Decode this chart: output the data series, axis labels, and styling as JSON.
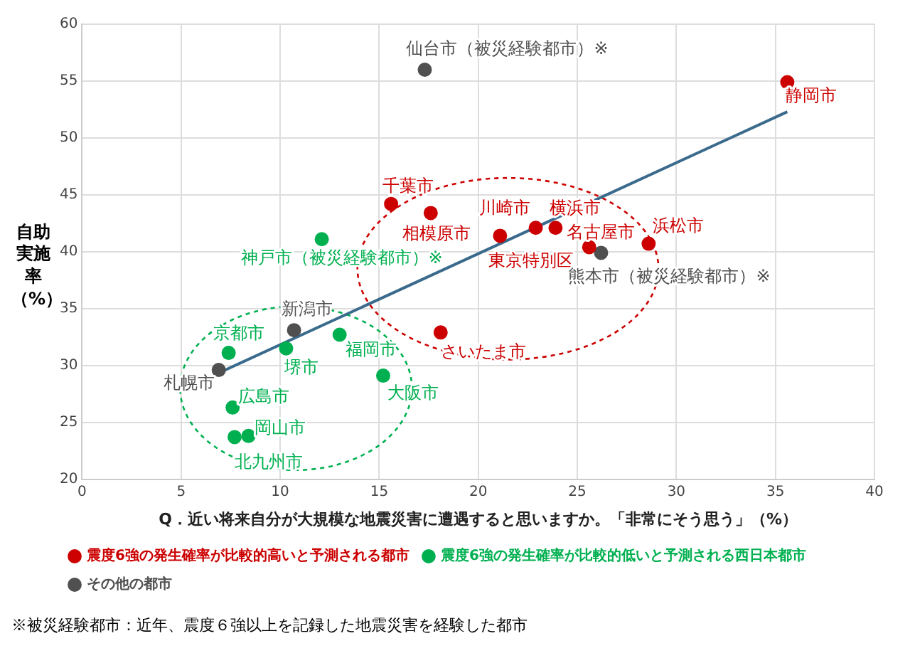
{
  "chart_data": {
    "type": "scatter",
    "xlabel": "Q．近い将来自分が大規模な地震災害に遭遇すると思いますか。「非常にそう思う」（%）",
    "ylabel": "自助実施率（%）",
    "xlim": [
      0,
      40
    ],
    "xticks": [
      0,
      5,
      10,
      15,
      20,
      25,
      30,
      35,
      40
    ],
    "ylim": [
      20,
      60
    ],
    "yticks": [
      20,
      25,
      30,
      35,
      40,
      45,
      50,
      55,
      60
    ],
    "grid": true,
    "legend": "bottom",
    "marker": "circle",
    "series": [
      {
        "name": "震度6強の発生確率が比較的高いと予測される都市",
        "color": "#cc0000",
        "x": [
          35.6,
          15.6,
          17.6,
          21.1,
          22.9,
          23.9,
          25.6,
          28.6,
          18.1
        ],
        "values": [
          54.9,
          44.2,
          43.4,
          41.4,
          42.1,
          42.1,
          40.4,
          40.7,
          32.9
        ]
      },
      {
        "name": "震度6強の発生確率が比較的低いと予測される西日本都市",
        "color": "#00b050",
        "x": [
          12.1,
          7.4,
          10.3,
          13.0,
          15.2,
          7.6,
          8.4,
          7.7
        ],
        "values": [
          41.1,
          31.1,
          31.5,
          32.7,
          29.1,
          26.3,
          23.8,
          23.7
        ]
      },
      {
        "name": "その他の都市",
        "color": "#505050",
        "x": [
          17.3,
          26.2,
          10.7,
          6.9
        ],
        "values": [
          56.0,
          39.9,
          33.1,
          29.6
        ]
      },
      {
        "type": "line",
        "marker": "none",
        "color": "#3a6a8c",
        "x": [
          7.1,
          35.6
        ],
        "values": [
          29.5,
          52.3
        ]
      }
    ],
    "annotations": [
      {
        "text": "仙台市（被災経験都市）※",
        "x": 17.3,
        "y": 56.0
      },
      {
        "text": "静岡市",
        "x": 35.6,
        "y": 54.9
      },
      {
        "text": "千葉市",
        "x": 15.6,
        "y": 44.2
      },
      {
        "text": "相模原市",
        "x": 17.6,
        "y": 43.4
      },
      {
        "text": "神戸市（被災経験都市）※",
        "x": 12.1,
        "y": 41.1
      },
      {
        "text": "東京特別区",
        "x": 21.1,
        "y": 41.4
      },
      {
        "text": "川崎市",
        "x": 22.9,
        "y": 42.1
      },
      {
        "text": "横浜市",
        "x": 23.9,
        "y": 42.1
      },
      {
        "text": "名古屋市",
        "x": 25.6,
        "y": 40.4
      },
      {
        "text": "熊本市（被災経験都市）※",
        "x": 26.2,
        "y": 39.9
      },
      {
        "text": "浜松市",
        "x": 28.6,
        "y": 40.7
      },
      {
        "text": "さいたま市",
        "x": 18.1,
        "y": 32.9
      },
      {
        "text": "新潟市",
        "x": 10.7,
        "y": 33.1
      },
      {
        "text": "京都市",
        "x": 7.4,
        "y": 31.1
      },
      {
        "text": "堺市",
        "x": 10.3,
        "y": 31.5
      },
      {
        "text": "福岡市",
        "x": 13.0,
        "y": 32.7
      },
      {
        "text": "札幌市",
        "x": 6.9,
        "y": 29.6
      },
      {
        "text": "大阪市",
        "x": 15.2,
        "y": 29.1
      },
      {
        "text": "広島市",
        "x": 7.6,
        "y": 26.3
      },
      {
        "text": "岡山市",
        "x": 8.4,
        "y": 23.8
      },
      {
        "text": "北九州市",
        "x": 7.7,
        "y": 23.7
      },
      "※被災経験都市：近年、震度６強以上を記録した地震災害を経験した都市"
    ]
  }
}
